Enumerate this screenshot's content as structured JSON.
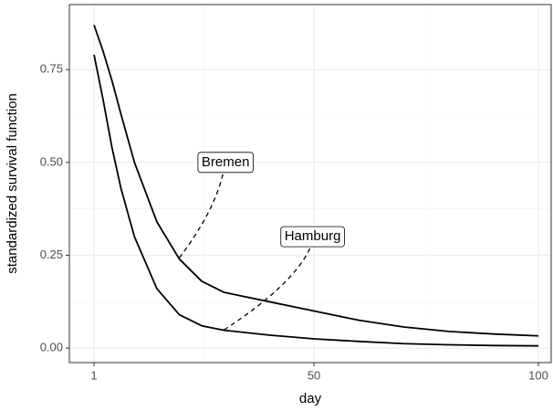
{
  "chart_data": {
    "type": "line",
    "x_label": "day",
    "y_label": "standardized survival function",
    "x": [
      1,
      3,
      5,
      7,
      10,
      15,
      20,
      25,
      30,
      40,
      50,
      60,
      70,
      80,
      90,
      100
    ],
    "series": [
      {
        "name": "Bremen",
        "color": "#000000",
        "values": [
          0.87,
          0.8,
          0.72,
          0.63,
          0.5,
          0.34,
          0.24,
          0.18,
          0.15,
          0.125,
          0.1,
          0.075,
          0.057,
          0.045,
          0.038,
          0.033
        ]
      },
      {
        "name": "Hamburg",
        "color": "#000000",
        "values": [
          0.79,
          0.67,
          0.54,
          0.43,
          0.3,
          0.16,
          0.09,
          0.06,
          0.048,
          0.035,
          0.025,
          0.018,
          0.012,
          0.009,
          0.007,
          0.006
        ]
      }
    ],
    "annotations": [
      {
        "series": 0,
        "x": 30.3,
        "y": 0.5,
        "x_end": 19.8,
        "y_end": 0.24
      },
      {
        "series": 1,
        "x": 49.7,
        "y": 0.3,
        "x_end": 29.7,
        "y_end": 0.047
      }
    ],
    "xlim": [
      -4.5,
      102.85
    ],
    "ylim": [
      -0.039,
      0.925
    ],
    "xticks": [
      1,
      50,
      100
    ],
    "yticks": [
      {
        "value": 0,
        "label": "0.00"
      },
      {
        "value": 0.25,
        "label": "0.25"
      },
      {
        "value": 0.5,
        "label": "0.50"
      },
      {
        "value": 0.75,
        "label": "0.75"
      }
    ],
    "grid": true
  }
}
